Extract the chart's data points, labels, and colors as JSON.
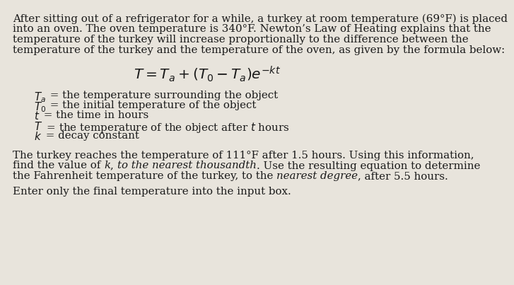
{
  "bg_color": "#e8e4dc",
  "text_color": "#1a1a1a",
  "para1_line1": "After sitting out of a refrigerator for a while, a turkey at room temperature (69°F) is placed",
  "para1_line2": "into an oven. The oven temperature is 340°F. Newton’s Law of Heating explains that the",
  "para1_line3": "temperature of the turkey will increase proportionally to the difference between the",
  "para1_line4": "temperature of the turkey and the temperature of the oven, as given by the formula below:",
  "font_size": 10.8,
  "formula_fontsize": 14.5,
  "def_indent": 0.07,
  "body_line1": "The turkey reaches the temperature of 111°F after 1.5 hours. Using this information,",
  "body_line2_pre": "find the value of ",
  "body_line2_k": "k",
  "body_line2_mid": ", ",
  "body_line2_italic": "to the nearest thousandth",
  "body_line2_post": ". Use the resulting equation to determine",
  "body_line3_pre": "the Fahrenheit temperature of the turkey, to the ",
  "body_line3_italic": "nearest degree",
  "body_line3_post": ", after 5.5 hours.",
  "footer": "Enter only the final temperature into the input box."
}
